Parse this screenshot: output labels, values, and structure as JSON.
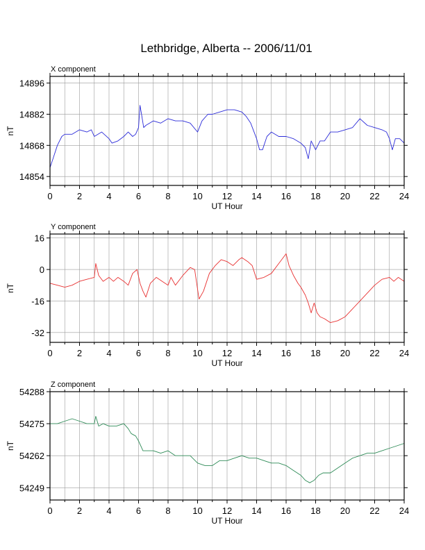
{
  "title": "Lethbridge, Alberta -- 2006/11/01",
  "chart_data": [
    {
      "type": "line",
      "title": "X component",
      "xlabel": "UT Hour",
      "ylabel": "nT",
      "xlim": [
        0,
        24
      ],
      "ylim": [
        14850,
        14899
      ],
      "xticks": [
        0,
        2,
        4,
        6,
        8,
        10,
        12,
        14,
        16,
        18,
        20,
        22,
        24
      ],
      "yticks": [
        14854,
        14868,
        14882,
        14896
      ],
      "grid": true,
      "color": "#2b2bd9",
      "series": [
        {
          "x": [
            0,
            0.2,
            0.5,
            0.8,
            1.0,
            1.5,
            2.0,
            2.5,
            2.8,
            3.0,
            3.5,
            4.0,
            4.2,
            4.6,
            5.0,
            5.3,
            5.6,
            5.8,
            6.0,
            6.1,
            6.2,
            6.35,
            6.5,
            7.0,
            7.5,
            8.0,
            8.5,
            9.0,
            9.5,
            10.0,
            10.3,
            10.7,
            11.0,
            11.5,
            12.0,
            12.5,
            13.0,
            13.3,
            13.6,
            14.0,
            14.2,
            14.4,
            14.7,
            15.0,
            15.5,
            16.0,
            16.5,
            17.0,
            17.3,
            17.5,
            17.7,
            18.0,
            18.3,
            18.6,
            19.0,
            19.5,
            20.0,
            20.5,
            21.0,
            21.5,
            22.0,
            22.5,
            22.8,
            23.0,
            23.2,
            23.4,
            23.7,
            24.0
          ],
          "values": [
            14858,
            14862,
            14868,
            14872,
            14873,
            14873,
            14875,
            14874,
            14875,
            14872,
            14874,
            14871,
            14869,
            14870,
            14872,
            14874,
            14872,
            14873,
            14876,
            14886,
            14882,
            14876,
            14877,
            14879,
            14878,
            14880,
            14879,
            14879,
            14878,
            14874,
            14879,
            14882,
            14882,
            14883,
            14884,
            14884,
            14883,
            14881,
            14878,
            14871,
            14866,
            14866,
            14872,
            14874,
            14872,
            14872,
            14871,
            14869,
            14867,
            14862,
            14870,
            14866,
            14870,
            14870,
            14874,
            14874,
            14875,
            14876,
            14880,
            14877,
            14876,
            14875,
            14874,
            14871,
            14866,
            14871,
            14871,
            14869
          ]
        }
      ]
    },
    {
      "type": "line",
      "title": "Y component",
      "xlabel": "UT Hour",
      "ylabel": "nT",
      "xlim": [
        0,
        24
      ],
      "ylim": [
        -37,
        18
      ],
      "xticks": [
        0,
        2,
        4,
        6,
        8,
        10,
        12,
        14,
        16,
        18,
        20,
        22,
        24
      ],
      "yticks": [
        -32,
        -16,
        0,
        16
      ],
      "grid": true,
      "color": "#e83030",
      "series": [
        {
          "x": [
            0,
            0.5,
            1.0,
            1.5,
            2.0,
            2.5,
            3.0,
            3.1,
            3.3,
            3.6,
            4.0,
            4.3,
            4.6,
            5.0,
            5.3,
            5.6,
            5.9,
            6.1,
            6.3,
            6.5,
            6.8,
            7.2,
            7.6,
            8.0,
            8.2,
            8.5,
            9.0,
            9.5,
            9.8,
            10.1,
            10.4,
            10.8,
            11.2,
            11.6,
            12.0,
            12.4,
            12.8,
            13.0,
            13.4,
            13.7,
            14.0,
            14.5,
            15.0,
            15.5,
            15.8,
            16.0,
            16.2,
            16.5,
            16.8,
            17.0,
            17.3,
            17.5,
            17.7,
            17.9,
            18.1,
            18.3,
            18.6,
            19.0,
            19.5,
            20.0,
            20.5,
            21.0,
            21.5,
            22.0,
            22.5,
            23.0,
            23.3,
            23.6,
            24.0
          ],
          "values": [
            -7,
            -8,
            -9,
            -8,
            -6,
            -5,
            -4,
            3,
            -3,
            -6,
            -4,
            -6,
            -4,
            -6,
            -8,
            -2,
            0,
            -7,
            -11,
            -14,
            -7,
            -4,
            -6,
            -8,
            -4,
            -8,
            -3,
            1,
            0,
            -15,
            -11,
            -2,
            2,
            5,
            4,
            2,
            5,
            6,
            4,
            2,
            -5,
            -4,
            -2,
            3,
            6,
            8,
            2,
            -3,
            -7,
            -9,
            -13,
            -17,
            -22,
            -17,
            -22,
            -24,
            -25,
            -27,
            -26,
            -24,
            -20,
            -16,
            -12,
            -8,
            -5,
            -4,
            -6,
            -4,
            -6
          ]
        }
      ]
    },
    {
      "type": "line",
      "title": "Z component",
      "xlabel": "UT Hour",
      "ylabel": "nT",
      "xlim": [
        0,
        24
      ],
      "ylim": [
        54244,
        54288
      ],
      "xticks": [
        0,
        2,
        4,
        6,
        8,
        10,
        12,
        14,
        16,
        18,
        20,
        22,
        24
      ],
      "yticks": [
        54249,
        54262,
        54275,
        54288
      ],
      "grid": true,
      "color": "#2e8b57",
      "series": [
        {
          "x": [
            0,
            0.5,
            1.0,
            1.5,
            2.0,
            2.5,
            3.0,
            3.1,
            3.3,
            3.6,
            4.0,
            4.5,
            5.0,
            5.3,
            5.5,
            5.8,
            6.0,
            6.3,
            6.6,
            7.0,
            7.5,
            8.0,
            8.5,
            9.0,
            9.5,
            10.0,
            10.5,
            11.0,
            11.5,
            12.0,
            12.5,
            13.0,
            13.5,
            14.0,
            14.5,
            15.0,
            15.5,
            16.0,
            16.5,
            17.0,
            17.3,
            17.6,
            17.9,
            18.2,
            18.5,
            19.0,
            19.5,
            20.0,
            20.5,
            21.0,
            21.5,
            22.0,
            22.5,
            23.0,
            23.5,
            24.0
          ],
          "values": [
            54275,
            54275,
            54276,
            54277,
            54276,
            54275,
            54275,
            54278,
            54274,
            54275,
            54274,
            54274,
            54275,
            54273,
            54271,
            54270,
            54268,
            54264,
            54264,
            54264,
            54263,
            54264,
            54262,
            54262,
            54262,
            54259,
            54258,
            54258,
            54260,
            54260,
            54261,
            54262,
            54261,
            54261,
            54260,
            54259,
            54259,
            54258,
            54256,
            54254,
            54252,
            54251,
            54252,
            54254,
            54255,
            54255,
            54257,
            54259,
            54261,
            54262,
            54263,
            54263,
            54264,
            54265,
            54266,
            54267
          ]
        }
      ]
    }
  ]
}
